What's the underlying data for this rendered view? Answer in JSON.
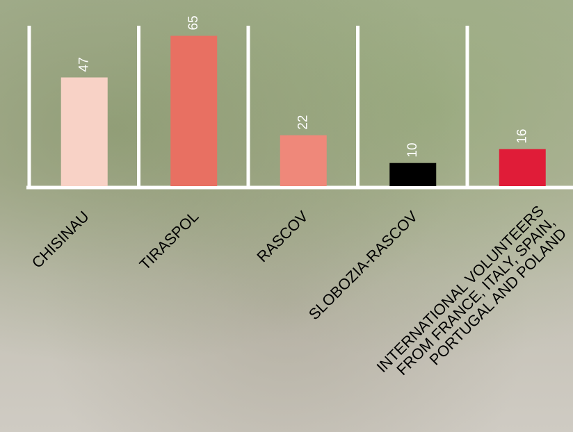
{
  "chart_data": {
    "type": "bar",
    "categories": [
      "CHISINAU",
      "TIRASPOL",
      "RASCOV",
      "SLOBOZIA-RASCOV",
      "INTERNATIONAL VOLUNTEERS\nFROM FRANCE, ITALY, SPAIN,\nPORTUGAL AND POLAND"
    ],
    "values": [
      47,
      65,
      22,
      10,
      16
    ],
    "colors": [
      "#f8d2c6",
      "#e87062",
      "#ef887a",
      "#000000",
      "#e01c38"
    ]
  }
}
